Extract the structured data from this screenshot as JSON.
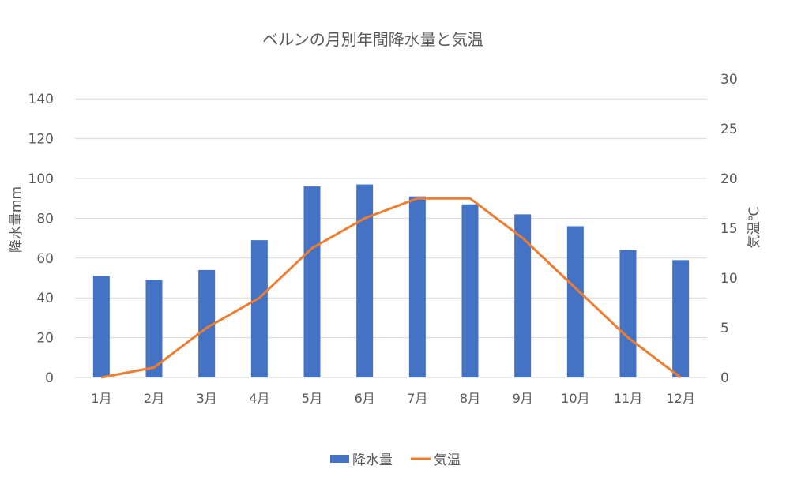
{
  "chart_data": {
    "type": "bar+line",
    "title": "ベルンの月別年間降水量と気温",
    "categories": [
      "1月",
      "2月",
      "3月",
      "4月",
      "5月",
      "6月",
      "7月",
      "8月",
      "9月",
      "10月",
      "11月",
      "12月"
    ],
    "series": [
      {
        "name": "降水量",
        "type": "bar",
        "axis": "left",
        "color": "#4472C4",
        "values": [
          51,
          49,
          54,
          69,
          96,
          97,
          91,
          87,
          82,
          76,
          64,
          59
        ]
      },
      {
        "name": "気温",
        "type": "line",
        "axis": "right",
        "color": "#ED7D31",
        "values": [
          0,
          1,
          5,
          8,
          13,
          16,
          18,
          18,
          14,
          9,
          4,
          0
        ]
      }
    ],
    "ylabel": "降水量mm",
    "y2label": "気温℃",
    "ylim": [
      0,
      150
    ],
    "yticks": [
      0,
      20,
      40,
      60,
      80,
      100,
      120,
      140
    ],
    "y2lim": [
      0,
      30
    ],
    "y2ticks": [
      0,
      5,
      10,
      15,
      20,
      25,
      30
    ],
    "grid": true,
    "legend": "bottom"
  }
}
